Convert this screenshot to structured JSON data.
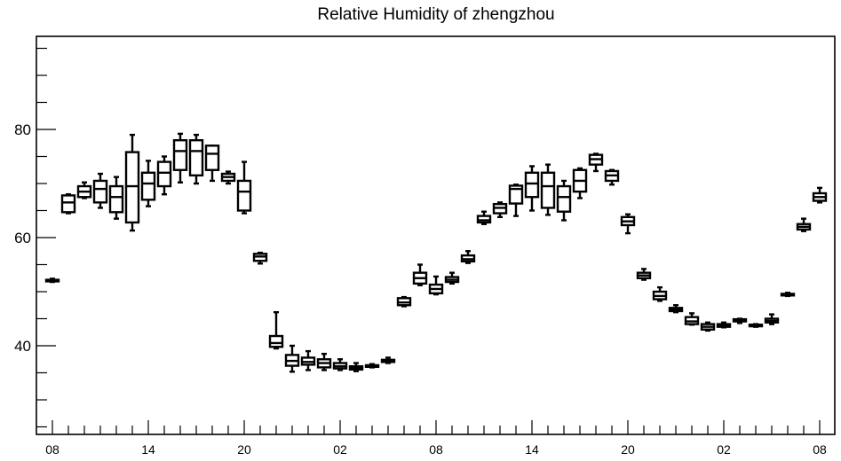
{
  "chart_data": {
    "type": "box",
    "title": "Relative Humidity of zhengzhou",
    "xlabel": "",
    "ylabel": "",
    "ylim": [
      24,
      98
    ],
    "yticks": [
      40,
      60,
      80
    ],
    "x_tick_labels": [
      "08",
      "14",
      "20",
      "02",
      "08",
      "14",
      "20",
      "02",
      "08"
    ],
    "x_tick_hours": [
      0,
      6,
      12,
      18,
      24,
      30,
      36,
      42,
      48
    ],
    "grid": false,
    "series": [
      {
        "boxes": [
          {
            "x": 0,
            "min": 51.8,
            "q1": 51.9,
            "median": 52.0,
            "q3": 52.2,
            "max": 52.4
          },
          {
            "x": 1,
            "min": 64.5,
            "q1": 64.7,
            "median": 66.5,
            "q3": 67.8,
            "max": 68.0
          },
          {
            "x": 2,
            "min": 67.3,
            "q1": 67.5,
            "median": 68.5,
            "q3": 69.5,
            "max": 70.2
          },
          {
            "x": 3,
            "min": 65.5,
            "q1": 66.5,
            "median": 69.0,
            "q3": 70.5,
            "max": 71.8
          },
          {
            "x": 4,
            "min": 63.5,
            "q1": 64.7,
            "median": 67.5,
            "q3": 69.5,
            "max": 71.2
          },
          {
            "x": 5,
            "min": 61.3,
            "q1": 62.8,
            "median": 69.5,
            "q3": 75.8,
            "max": 79.0
          },
          {
            "x": 6,
            "min": 65.8,
            "q1": 67.0,
            "median": 70.0,
            "q3": 72.0,
            "max": 74.2
          },
          {
            "x": 7,
            "min": 68.0,
            "q1": 69.5,
            "median": 72.0,
            "q3": 74.0,
            "max": 75.0
          },
          {
            "x": 8,
            "min": 70.2,
            "q1": 72.5,
            "median": 76.0,
            "q3": 78.0,
            "max": 79.2
          },
          {
            "x": 9,
            "min": 70.0,
            "q1": 71.5,
            "median": 76.0,
            "q3": 78.0,
            "max": 79.0
          },
          {
            "x": 10,
            "min": 70.5,
            "q1": 72.5,
            "median": 75.5,
            "q3": 77.0,
            "max": 77.0
          },
          {
            "x": 11,
            "min": 70.0,
            "q1": 70.5,
            "median": 71.2,
            "q3": 71.8,
            "max": 72.2
          },
          {
            "x": 12,
            "min": 64.5,
            "q1": 65.0,
            "median": 68.5,
            "q3": 70.5,
            "max": 74.0
          },
          {
            "x": 13,
            "min": 55.2,
            "q1": 55.7,
            "median": 56.5,
            "q3": 57.0,
            "max": 57.2
          },
          {
            "x": 14,
            "min": 39.5,
            "q1": 39.8,
            "median": 40.5,
            "q3": 41.8,
            "max": 46.2
          },
          {
            "x": 15,
            "min": 35.2,
            "q1": 36.3,
            "median": 37.2,
            "q3": 38.3,
            "max": 40.0
          },
          {
            "x": 16,
            "min": 35.5,
            "q1": 36.5,
            "median": 37.0,
            "q3": 37.8,
            "max": 39.0
          },
          {
            "x": 17,
            "min": 35.5,
            "q1": 36.0,
            "median": 36.8,
            "q3": 37.5,
            "max": 38.5
          },
          {
            "x": 18,
            "min": 35.5,
            "q1": 35.8,
            "median": 36.2,
            "q3": 36.8,
            "max": 37.5
          },
          {
            "x": 19,
            "min": 35.3,
            "q1": 35.6,
            "median": 35.9,
            "q3": 36.2,
            "max": 36.8
          },
          {
            "x": 20,
            "min": 36.0,
            "q1": 36.1,
            "median": 36.3,
            "q3": 36.4,
            "max": 36.6
          },
          {
            "x": 21,
            "min": 36.8,
            "q1": 37.0,
            "median": 37.2,
            "q3": 37.4,
            "max": 37.8
          },
          {
            "x": 22,
            "min": 47.3,
            "q1": 47.5,
            "median": 48.0,
            "q3": 48.8,
            "max": 49.0
          },
          {
            "x": 23,
            "min": 51.2,
            "q1": 51.5,
            "median": 52.5,
            "q3": 53.5,
            "max": 55.0
          },
          {
            "x": 24,
            "min": 49.5,
            "q1": 49.7,
            "median": 50.5,
            "q3": 51.3,
            "max": 52.8
          },
          {
            "x": 25,
            "min": 51.5,
            "q1": 51.8,
            "median": 52.2,
            "q3": 52.7,
            "max": 53.5
          },
          {
            "x": 26,
            "min": 55.3,
            "q1": 55.6,
            "median": 56.0,
            "q3": 56.7,
            "max": 57.5
          },
          {
            "x": 27,
            "min": 62.5,
            "q1": 62.8,
            "median": 63.2,
            "q3": 64.0,
            "max": 64.8
          },
          {
            "x": 28,
            "min": 63.8,
            "q1": 64.5,
            "median": 65.5,
            "q3": 66.2,
            "max": 66.5
          },
          {
            "x": 29,
            "min": 64.0,
            "q1": 66.3,
            "median": 69.0,
            "q3": 69.6,
            "max": 69.8
          },
          {
            "x": 30,
            "min": 65.0,
            "q1": 67.5,
            "median": 70.0,
            "q3": 72.0,
            "max": 73.2
          },
          {
            "x": 31,
            "min": 64.2,
            "q1": 65.5,
            "median": 69.5,
            "q3": 72.0,
            "max": 73.5
          },
          {
            "x": 32,
            "min": 63.2,
            "q1": 64.8,
            "median": 67.5,
            "q3": 69.5,
            "max": 70.5
          },
          {
            "x": 33,
            "min": 67.3,
            "q1": 68.5,
            "median": 70.5,
            "q3": 72.5,
            "max": 72.8
          },
          {
            "x": 34,
            "min": 72.3,
            "q1": 73.5,
            "median": 74.5,
            "q3": 75.3,
            "max": 75.5
          },
          {
            "x": 35,
            "min": 69.8,
            "q1": 70.5,
            "median": 71.5,
            "q3": 72.3,
            "max": 72.5
          },
          {
            "x": 36,
            "min": 60.8,
            "q1": 62.3,
            "median": 63.0,
            "q3": 63.8,
            "max": 64.3
          },
          {
            "x": 37,
            "min": 52.2,
            "q1": 52.5,
            "median": 53.0,
            "q3": 53.5,
            "max": 54.2
          },
          {
            "x": 38,
            "min": 48.3,
            "q1": 48.6,
            "median": 49.2,
            "q3": 50.0,
            "max": 50.8
          },
          {
            "x": 39,
            "min": 46.2,
            "q1": 46.4,
            "median": 46.7,
            "q3": 47.0,
            "max": 47.5
          },
          {
            "x": 40,
            "min": 43.9,
            "q1": 44.0,
            "median": 44.5,
            "q3": 45.3,
            "max": 46.0
          },
          {
            "x": 41,
            "min": 42.8,
            "q1": 43.0,
            "median": 43.5,
            "q3": 44.0,
            "max": 44.3
          },
          {
            "x": 42,
            "min": 43.4,
            "q1": 43.5,
            "median": 43.8,
            "q3": 44.0,
            "max": 44.3
          },
          {
            "x": 43,
            "min": 44.2,
            "q1": 44.5,
            "median": 44.8,
            "q3": 44.9,
            "max": 45.0
          },
          {
            "x": 44,
            "min": 43.5,
            "q1": 43.6,
            "median": 43.8,
            "q3": 43.9,
            "max": 44.0
          },
          {
            "x": 45,
            "min": 44.0,
            "q1": 44.3,
            "median": 44.6,
            "q3": 45.0,
            "max": 45.8
          },
          {
            "x": 46,
            "min": 49.2,
            "q1": 49.3,
            "median": 49.5,
            "q3": 49.6,
            "max": 49.8
          },
          {
            "x": 47,
            "min": 61.2,
            "q1": 61.5,
            "median": 62.0,
            "q3": 62.5,
            "max": 63.5
          },
          {
            "x": 48,
            "min": 66.5,
            "q1": 66.8,
            "median": 67.5,
            "q3": 68.2,
            "max": 69.2
          }
        ]
      }
    ]
  }
}
